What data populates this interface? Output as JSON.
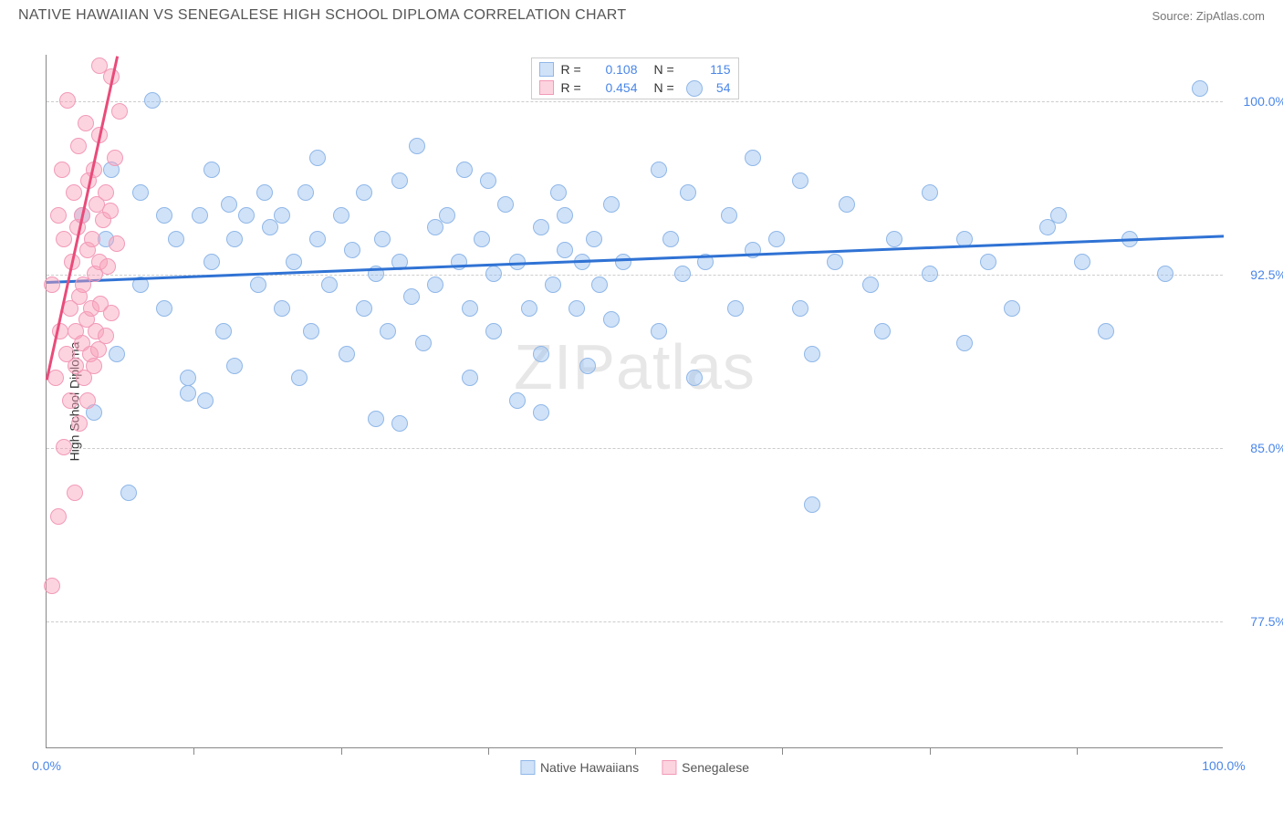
{
  "header": {
    "title": "NATIVE HAWAIIAN VS SENEGALESE HIGH SCHOOL DIPLOMA CORRELATION CHART",
    "source": "Source: ZipAtlas.com"
  },
  "chart": {
    "type": "scatter",
    "y_axis_title": "High School Diploma",
    "background_color": "#ffffff",
    "grid_color": "#cccccc",
    "axis_color": "#888888",
    "tick_label_color": "#4a86e8",
    "tick_fontsize": 14,
    "title_fontsize": 16,
    "xlim": [
      0,
      100
    ],
    "ylim": [
      72,
      102
    ],
    "x_ticks_major": [
      0,
      100
    ],
    "x_tick_labels": [
      "0.0%",
      "100.0%"
    ],
    "x_ticks_minor": [
      12.5,
      25,
      37.5,
      50,
      62.5,
      75,
      87.5
    ],
    "y_ticks": [
      77.5,
      85.0,
      92.5,
      100.0
    ],
    "y_tick_labels": [
      "77.5%",
      "85.0%",
      "92.5%",
      "100.0%"
    ],
    "series": [
      {
        "name": "Native Hawaiians",
        "marker_color_fill": "rgba(150,190,240,0.45)",
        "marker_color_stroke": "#8fb7e8",
        "marker_radius": 9,
        "trend_color": "#2f72d4",
        "trend_width": 2.5,
        "trend": {
          "x1": 0,
          "y1": 92.2,
          "x2": 100,
          "y2": 94.2
        },
        "R": "0.108",
        "N": "115",
        "points": [
          [
            3,
            95
          ],
          [
            4,
            86.5
          ],
          [
            5,
            94
          ],
          [
            5.5,
            97
          ],
          [
            6,
            89
          ],
          [
            7,
            83
          ],
          [
            8,
            92
          ],
          [
            8,
            96
          ],
          [
            9,
            100
          ],
          [
            10,
            91
          ],
          [
            10,
            95
          ],
          [
            11,
            94
          ],
          [
            12,
            88
          ],
          [
            13,
            95
          ],
          [
            13.5,
            87
          ],
          [
            14,
            93
          ],
          [
            14,
            97
          ],
          [
            15,
            90
          ],
          [
            15.5,
            95.5
          ],
          [
            16,
            94
          ],
          [
            16,
            88.5
          ],
          [
            17,
            95
          ],
          [
            18,
            92
          ],
          [
            18.5,
            96
          ],
          [
            19,
            94.5
          ],
          [
            20,
            91
          ],
          [
            20,
            95
          ],
          [
            21,
            93
          ],
          [
            21.5,
            88
          ],
          [
            22,
            96
          ],
          [
            22.5,
            90
          ],
          [
            23,
            94
          ],
          [
            23,
            97.5
          ],
          [
            24,
            92
          ],
          [
            25,
            95
          ],
          [
            25.5,
            89
          ],
          [
            26,
            93.5
          ],
          [
            27,
            91
          ],
          [
            27,
            96
          ],
          [
            28,
            92.5
          ],
          [
            28.5,
            94
          ],
          [
            29,
            90
          ],
          [
            30,
            93
          ],
          [
            30,
            96.5
          ],
          [
            31,
            91.5
          ],
          [
            31.5,
            98
          ],
          [
            32,
            89.5
          ],
          [
            33,
            94.5
          ],
          [
            33,
            92
          ],
          [
            34,
            95
          ],
          [
            35,
            93
          ],
          [
            35.5,
            97
          ],
          [
            36,
            88
          ],
          [
            36,
            91
          ],
          [
            37,
            94
          ],
          [
            37.5,
            96.5
          ],
          [
            38,
            92.5
          ],
          [
            38,
            90
          ],
          [
            39,
            95.5
          ],
          [
            40,
            93
          ],
          [
            40,
            87
          ],
          [
            41,
            91
          ],
          [
            42,
            94.5
          ],
          [
            42,
            89
          ],
          [
            43,
            92
          ],
          [
            43.5,
            96
          ],
          [
            44,
            93.5
          ],
          [
            44,
            95
          ],
          [
            45,
            91
          ],
          [
            45.5,
            93
          ],
          [
            46,
            88.5
          ],
          [
            46.5,
            94
          ],
          [
            47,
            92
          ],
          [
            48,
            90.5
          ],
          [
            48,
            95.5
          ],
          [
            49,
            93
          ],
          [
            52,
            97
          ],
          [
            52,
            90
          ],
          [
            53,
            94
          ],
          [
            54,
            92.5
          ],
          [
            54.5,
            96
          ],
          [
            55,
            88
          ],
          [
            56,
            93
          ],
          [
            58,
            95
          ],
          [
            58.5,
            91
          ],
          [
            60,
            97.5
          ],
          [
            60,
            93.5
          ],
          [
            62,
            94
          ],
          [
            64,
            91
          ],
          [
            64,
            96.5
          ],
          [
            65,
            82.5
          ],
          [
            65,
            89
          ],
          [
            67,
            93
          ],
          [
            68,
            95.5
          ],
          [
            70,
            92
          ],
          [
            71,
            90
          ],
          [
            72,
            94
          ],
          [
            75,
            92.5
          ],
          [
            75,
            96
          ],
          [
            78,
            89.5
          ],
          [
            78,
            94
          ],
          [
            80,
            93
          ],
          [
            82,
            91
          ],
          [
            85,
            94.5
          ],
          [
            86,
            95
          ],
          [
            88,
            93
          ],
          [
            90,
            90
          ],
          [
            92,
            94
          ],
          [
            95,
            92.5
          ],
          [
            98,
            100.5
          ],
          [
            55,
            100.5
          ],
          [
            42,
            86.5
          ],
          [
            28,
            86.2
          ],
          [
            30,
            86
          ],
          [
            12,
            87.3
          ]
        ]
      },
      {
        "name": "Senegalese",
        "marker_color_fill": "rgba(248,160,185,0.45)",
        "marker_color_stroke": "#f29ab8",
        "marker_radius": 9,
        "trend_color": "#e94b7a",
        "trend_width": 2.5,
        "trend": {
          "x1": 0,
          "y1": 88,
          "x2": 6,
          "y2": 102
        },
        "R": "0.454",
        "N": "54",
        "points": [
          [
            0.5,
            79
          ],
          [
            0.5,
            92
          ],
          [
            0.8,
            88
          ],
          [
            1,
            95
          ],
          [
            1,
            82
          ],
          [
            1.2,
            90
          ],
          [
            1.3,
            97
          ],
          [
            1.5,
            85
          ],
          [
            1.5,
            94
          ],
          [
            1.7,
            89
          ],
          [
            1.8,
            100
          ],
          [
            2,
            91
          ],
          [
            2,
            87
          ],
          [
            2.2,
            93
          ],
          [
            2.3,
            96
          ],
          [
            2.4,
            83
          ],
          [
            2.5,
            90
          ],
          [
            2.5,
            88.5
          ],
          [
            2.6,
            94.5
          ],
          [
            2.7,
            98
          ],
          [
            2.8,
            86
          ],
          [
            2.8,
            91.5
          ],
          [
            3,
            89.5
          ],
          [
            3,
            95
          ],
          [
            3.1,
            92
          ],
          [
            3.2,
            88
          ],
          [
            3.3,
            99
          ],
          [
            3.4,
            90.5
          ],
          [
            3.5,
            87
          ],
          [
            3.5,
            93.5
          ],
          [
            3.6,
            96.5
          ],
          [
            3.7,
            89
          ],
          [
            3.8,
            91
          ],
          [
            3.9,
            94
          ],
          [
            4,
            88.5
          ],
          [
            4,
            97
          ],
          [
            4.1,
            92.5
          ],
          [
            4.2,
            90
          ],
          [
            4.3,
            95.5
          ],
          [
            4.4,
            89.2
          ],
          [
            4.5,
            93
          ],
          [
            4.5,
            98.5
          ],
          [
            4.6,
            91.2
          ],
          [
            4.8,
            94.8
          ],
          [
            5,
            96
          ],
          [
            5,
            89.8
          ],
          [
            5.2,
            92.8
          ],
          [
            5.4,
            95.2
          ],
          [
            5.5,
            101
          ],
          [
            5.5,
            90.8
          ],
          [
            5.8,
            97.5
          ],
          [
            6,
            93.8
          ],
          [
            6.2,
            99.5
          ],
          [
            4.5,
            101.5
          ]
        ]
      }
    ],
    "legend_top": {
      "rows": [
        {
          "color_fill": "rgba(150,190,240,0.45)",
          "color_stroke": "#8fb7e8",
          "r_label": "R =",
          "r_val": "0.108",
          "n_label": "N =",
          "n_val": "115"
        },
        {
          "color_fill": "rgba(248,160,185,0.45)",
          "color_stroke": "#f29ab8",
          "r_label": "R =",
          "r_val": "0.454",
          "n_label": "N =",
          "n_val": "54"
        }
      ]
    },
    "legend_bottom": [
      {
        "label": "Native Hawaiians",
        "color_fill": "rgba(150,190,240,0.45)",
        "color_stroke": "#8fb7e8"
      },
      {
        "label": "Senegalese",
        "color_fill": "rgba(248,160,185,0.45)",
        "color_stroke": "#f29ab8"
      }
    ],
    "watermark": {
      "text1": "ZIP",
      "text2": "atlas"
    }
  }
}
